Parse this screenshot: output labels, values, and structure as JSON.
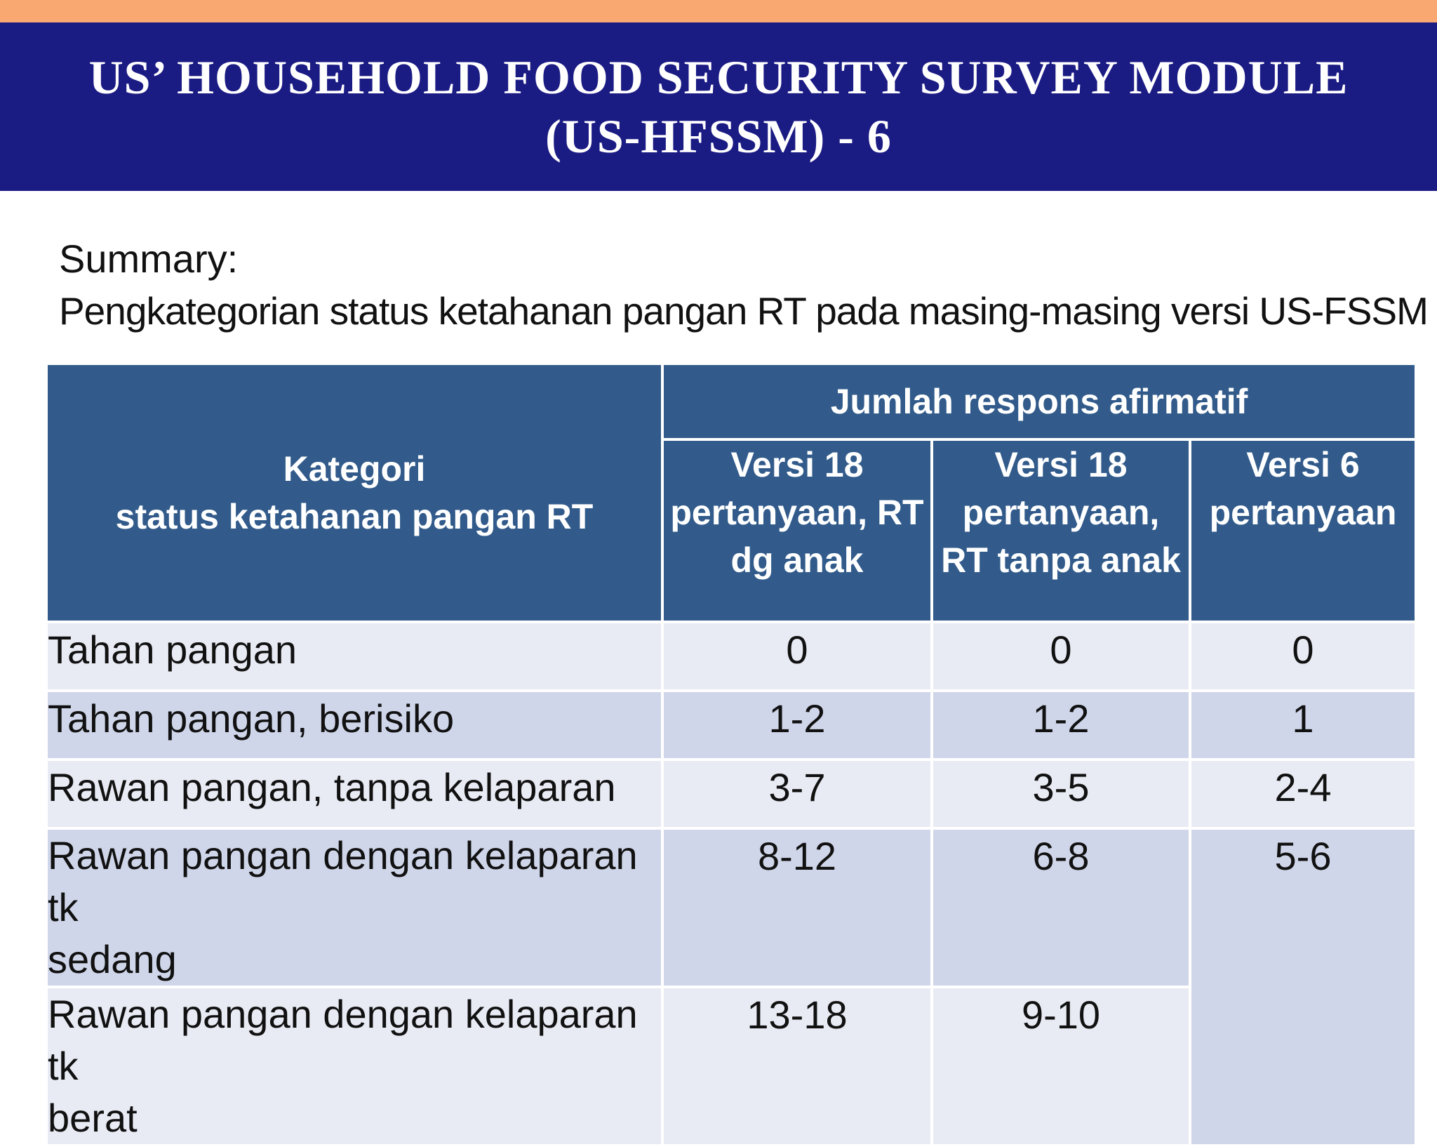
{
  "title": {
    "line1": "US’ HOUSEHOLD FOOD SECURITY SURVEY MODULE",
    "line2": "(US-HFSSM) - 6"
  },
  "summary": {
    "label": "Summary:",
    "text": "Pengkategorian status ketahanan pangan RT pada masing-masing versi US-FSSM"
  },
  "colors": {
    "top_stripe": "#f9a872",
    "title_banner": "#1b1b84",
    "table_header": "#325b8b",
    "row_light": "#e8ebf4",
    "row_dark": "#cfd6e9"
  },
  "table": {
    "category_header": {
      "line1": "Kategori",
      "line2": "status ketahanan pangan RT"
    },
    "group_header": "Jumlah respons afirmatif",
    "version_headers": [
      {
        "line1": "Versi 18",
        "line2": "pertanyaan, RT",
        "line3": "dg anak"
      },
      {
        "line1": "Versi 18",
        "line2": "pertanyaan,",
        "line3": "RT tanpa anak"
      },
      {
        "line1": "Versi 6",
        "line2": "pertanyaan",
        "line3": ""
      }
    ],
    "rows": [
      {
        "category_line1": "Tahan pangan",
        "category_line2": "",
        "v18_with_children": "0",
        "v18_without_children": "0",
        "v6": "0"
      },
      {
        "category_line1": "Tahan pangan, berisiko",
        "category_line2": "",
        "v18_with_children": "1-2",
        "v18_without_children": "1-2",
        "v6": "1"
      },
      {
        "category_line1": "Rawan pangan, tanpa kelaparan",
        "category_line2": "",
        "v18_with_children": "3-7",
        "v18_without_children": "3-5",
        "v6": "2-4"
      },
      {
        "category_line1": "Rawan pangan dengan kelaparan tk",
        "category_line2": "sedang",
        "v18_with_children": "8-12",
        "v18_without_children": "6-8",
        "v6": "5-6"
      },
      {
        "category_line1": "Rawan pangan dengan kelaparan tk",
        "category_line2": "berat",
        "v18_with_children": "13-18",
        "v18_without_children": "9-10"
      }
    ]
  }
}
